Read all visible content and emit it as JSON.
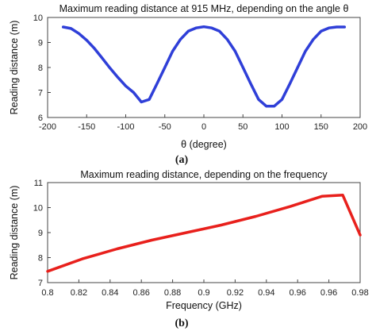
{
  "chart_data": [
    {
      "type": "line",
      "title": "Maximum reading distance at 915 MHz, depending on the angle θ",
      "xlabel": "θ (degree)",
      "ylabel": "Reading distance (m)",
      "caption": "(a)",
      "xlim": [
        -200,
        200
      ],
      "ylim": [
        6,
        10
      ],
      "xticks": [
        -200,
        -150,
        -100,
        -50,
        0,
        50,
        100,
        150,
        200
      ],
      "yticks": [
        6,
        7,
        8,
        9,
        10
      ],
      "grid": false,
      "series": [
        {
          "color": "#2f3fd8",
          "x": [
            -180,
            -170,
            -160,
            -150,
            -140,
            -130,
            -120,
            -110,
            -100,
            -90,
            -80,
            -70,
            -60,
            -50,
            -40,
            -30,
            -20,
            -10,
            0,
            10,
            20,
            30,
            40,
            50,
            60,
            70,
            80,
            90,
            100,
            110,
            120,
            130,
            140,
            150,
            160,
            170,
            180
          ],
          "y": [
            9.62,
            9.56,
            9.36,
            9.09,
            8.76,
            8.37,
            7.97,
            7.6,
            7.26,
            7.0,
            6.62,
            6.72,
            7.35,
            8.0,
            8.65,
            9.12,
            9.45,
            9.58,
            9.63,
            9.58,
            9.45,
            9.12,
            8.65,
            8.0,
            7.35,
            6.72,
            6.45,
            6.45,
            6.72,
            7.35,
            8.0,
            8.65,
            9.12,
            9.45,
            9.58,
            9.62,
            9.62
          ]
        }
      ]
    },
    {
      "type": "line",
      "title": "Maximum reading distance, depending on the frequency",
      "xlabel": "Frequency (GHz)",
      "ylabel": "Reading distance (m)",
      "caption": "(b)",
      "xlim": [
        0.8,
        0.98
      ],
      "ylim": [
        7,
        11
      ],
      "xticks": [
        "0.8",
        "0.82",
        "0.84",
        "0.86",
        "0.88",
        "0.9",
        "0.92",
        "0.94",
        "0.96",
        "0.96",
        "0.98"
      ],
      "yticks": [
        7,
        8,
        9,
        10,
        11
      ],
      "grid": false,
      "series": [
        {
          "color": "#e8201c",
          "x": [
            0.8,
            0.82,
            0.84,
            0.86,
            0.88,
            0.9,
            0.92,
            0.94,
            0.958,
            0.97,
            0.98
          ],
          "y": [
            7.45,
            7.95,
            8.35,
            8.7,
            9.0,
            9.3,
            9.65,
            10.05,
            10.45,
            10.5,
            8.9
          ]
        }
      ]
    }
  ]
}
